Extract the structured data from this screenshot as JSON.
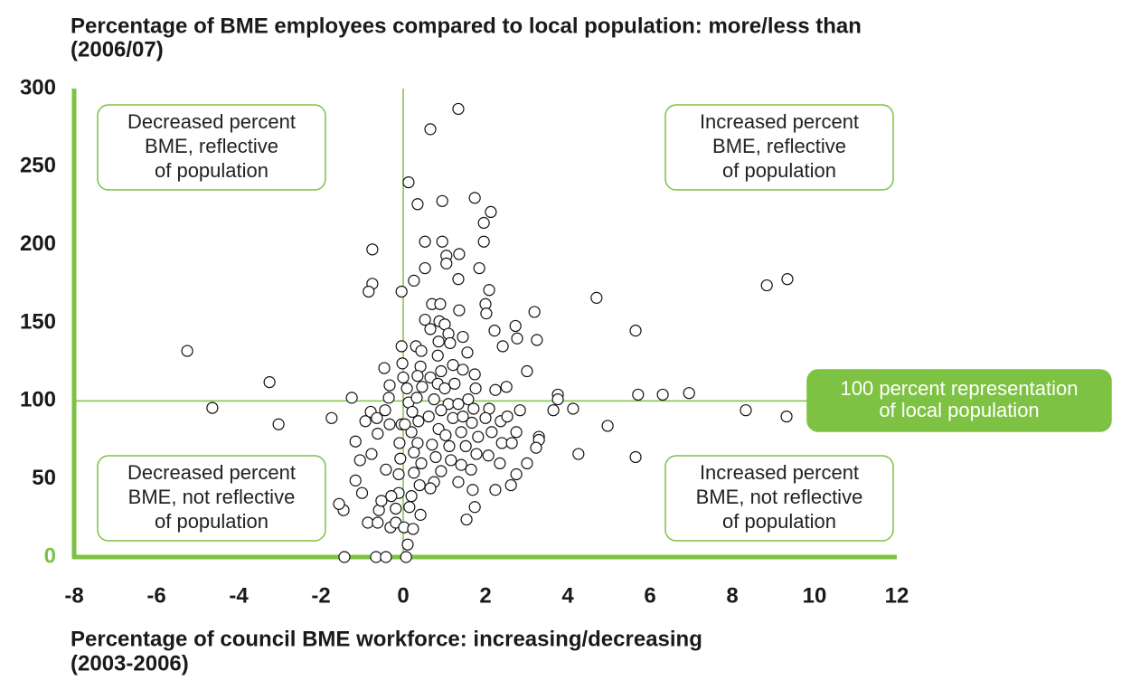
{
  "chart_data": {
    "type": "scatter",
    "title": [
      "Percentage of BME employees compared to local population: more/less than",
      "(2006/07)"
    ],
    "x_label": [
      "Percentage of council BME workforce: increasing/decreasing",
      "(2003-2006)"
    ],
    "xlim": [
      -8,
      12
    ],
    "xticks": [
      -8,
      -6,
      -4,
      -2,
      0,
      2,
      4,
      6,
      8,
      10,
      12
    ],
    "ylim": [
      0,
      300
    ],
    "yticks": [
      0,
      50,
      100,
      150,
      200,
      250,
      300
    ],
    "reference_lines": {
      "x": 0,
      "y": 100
    },
    "color": "#7dc242",
    "annotations": [
      [
        "Decreased percent",
        "BME, reflective",
        "of population"
      ],
      [
        "Increased percent",
        "BME, reflective",
        "of population"
      ],
      [
        "Decreased percent",
        "BME, not reflective",
        "of population"
      ],
      [
        "Increased percent",
        "BME, not reflective",
        "of population"
      ],
      [
        "100 percent representation",
        "of local population"
      ]
    ],
    "x": [
      -5.25,
      -4.64,
      -3.25,
      -3.03,
      -1.74,
      -1.45,
      -1.56,
      -1.43,
      -1.25,
      -0.75,
      -0.75,
      -0.84,
      -0.66,
      -0.42,
      -0.04,
      0.13,
      0.66,
      1.34,
      0.95,
      0.35,
      1.74,
      2.13,
      1.96,
      1.96,
      0.53,
      0.95,
      1.05,
      1.36,
      1.05,
      1.85,
      0.53,
      0.26,
      1.34,
      8.84,
      9.34,
      4.7,
      5.65,
      5.71,
      6.31,
      6.95,
      8.33,
      9.32,
      4.97,
      5.65,
      4.26,
      4.13,
      3.76,
      3.76,
      3.65,
      3.19,
      3.25,
      2.73,
      2.77,
      2.42,
      2.22,
      2.09,
      2.0,
      2.02,
      3.01,
      2.51,
      2.24,
      2.84,
      3.3,
      3.3,
      3.23,
      3.01,
      2.75,
      2.62,
      2.24,
      1.54,
      1.74,
      1.69,
      0.11,
      0.07,
      -1.05,
      -1.16,
      -1.0,
      -1.16,
      -0.92,
      -0.79,
      -0.77,
      -0.62,
      -0.64,
      -0.46,
      -0.33,
      -0.35,
      -0.44,
      -0.33,
      -0.86,
      -0.62,
      -0.59,
      -0.53,
      -0.42,
      -0.31,
      -0.18,
      -0.18,
      -0.11,
      -0.07,
      -0.09,
      -0.04,
      -0.04,
      -0.02,
      0,
      0.09,
      0.13,
      0.31,
      0.44,
      0.42,
      0.35,
      0.46,
      0.33,
      0.22,
      0.37,
      0.2,
      0.35,
      0.26,
      0.44,
      0.26,
      0.4,
      0.2,
      0.15,
      0.42,
      0.53,
      0.66,
      0.7,
      0.9,
      0.88,
      1.01,
      1.1,
      0.86,
      1.14,
      0.84,
      1.21,
      0.92,
      0.66,
      0.84,
      1.01,
      0.75,
      1.1,
      0.92,
      0.62,
      1.21,
      0.86,
      1.03,
      0.7,
      1.12,
      0.79,
      1.16,
      0.92,
      0.75,
      0.66,
      1.36,
      1.45,
      1.56,
      1.45,
      1.74,
      1.76,
      1.58,
      1.71,
      1.45,
      1.67,
      1.41,
      1.82,
      1.52,
      1.78,
      1.41,
      1.65,
      1.34,
      2.09,
      2.0,
      2.37,
      2.15,
      2.4,
      2.07,
      2.35,
      2.53,
      2.75,
      2.64,
      1.34,
      1.25,
      0.04,
      -0.29,
      0.02,
      0.24,
      -0.11
    ],
    "values": [
      132,
      95.5,
      112,
      85,
      89,
      30,
      34,
      0,
      102,
      197,
      175,
      170,
      0,
      0,
      170,
      240,
      274,
      287,
      228,
      226,
      230,
      221,
      214,
      202,
      202,
      202,
      193,
      194,
      188,
      185,
      185,
      177,
      178,
      174,
      178,
      166,
      145,
      104,
      104,
      105,
      94,
      90,
      84,
      64,
      66,
      95,
      104,
      101,
      94,
      157,
      139,
      148,
      140,
      135,
      145,
      171,
      162,
      156,
      119,
      109,
      107,
      94,
      77,
      75,
      70,
      60,
      53,
      46,
      43,
      24,
      32,
      43,
      8,
      0,
      62,
      49,
      41,
      74,
      87,
      93,
      66,
      79,
      89,
      121,
      110,
      102,
      94,
      85,
      22,
      22,
      30,
      36,
      56,
      19,
      22,
      31,
      41,
      63,
      73,
      85,
      135,
      124,
      115,
      108,
      99,
      135,
      132,
      122,
      116,
      109,
      102,
      93,
      87,
      80,
      73,
      67,
      60,
      54,
      46,
      39,
      32,
      27,
      152,
      146,
      162,
      162,
      151,
      149,
      143,
      138,
      137,
      129,
      123,
      119,
      115,
      111,
      108,
      101,
      98,
      94,
      90,
      89,
      82,
      78,
      72,
      71,
      64,
      62,
      55,
      48,
      44,
      158,
      141,
      131,
      120,
      117,
      108,
      101,
      95,
      90,
      86,
      80,
      77,
      71,
      66,
      59,
      56,
      48,
      95,
      89,
      87,
      80,
      73,
      65,
      60,
      90,
      80,
      73,
      98,
      111,
      85,
      39,
      19,
      18,
      53
    ]
  }
}
